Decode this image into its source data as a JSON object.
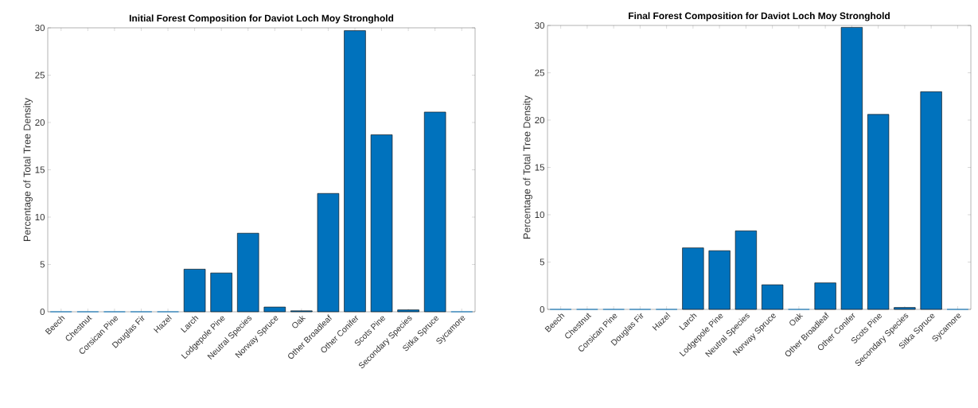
{
  "chart_data": [
    {
      "type": "bar",
      "title": "Initial Forest Composition for Daviot Loch Moy Stronghold",
      "ylabel": "Percentage of Total Tree Density",
      "categories": [
        "Beech",
        "Chestnut",
        "Corsican Pine",
        "Douglas Fir",
        "Hazel",
        "Larch",
        "Lodgepole Pine",
        "Neutral Species",
        "Norway Spruce",
        "Oak",
        "Other Broadleaf",
        "Other Conifer",
        "Scots Pine",
        "Secondary Species",
        "Sitka Spruce",
        "Sycamore"
      ],
      "values": [
        0,
        0,
        0,
        0,
        0,
        4.5,
        4.1,
        8.3,
        0.5,
        0.1,
        12.5,
        29.7,
        18.7,
        0.2,
        21.1,
        0
      ],
      "color": "#0072bd",
      "ylim": [
        0,
        30
      ],
      "yticks": [
        0,
        5,
        10,
        15,
        20,
        25,
        30
      ]
    },
    {
      "type": "bar",
      "title": "Final Forest Composition for Daviot Loch Moy Stronghold",
      "ylabel": "Percentage of Total Tree Density",
      "categories": [
        "Beech",
        "Chestnut",
        "Corsican Pine",
        "Douglas Fir",
        "Hazel",
        "Larch",
        "Lodgepole Pine",
        "Neutral Species",
        "Norway Spruce",
        "Oak",
        "Other Broadleaf",
        "Other Conifer",
        "Scots Pine",
        "Secondary Species",
        "Sitka Spruce",
        "Sycamore"
      ],
      "values": [
        0,
        0,
        0,
        0,
        0,
        6.5,
        6.2,
        8.3,
        2.6,
        0,
        2.8,
        29.8,
        20.6,
        0.2,
        23.0,
        0
      ],
      "color": "#0072bd",
      "ylim": [
        0,
        30
      ],
      "yticks": [
        0,
        5,
        10,
        15,
        20,
        25,
        30
      ]
    }
  ]
}
